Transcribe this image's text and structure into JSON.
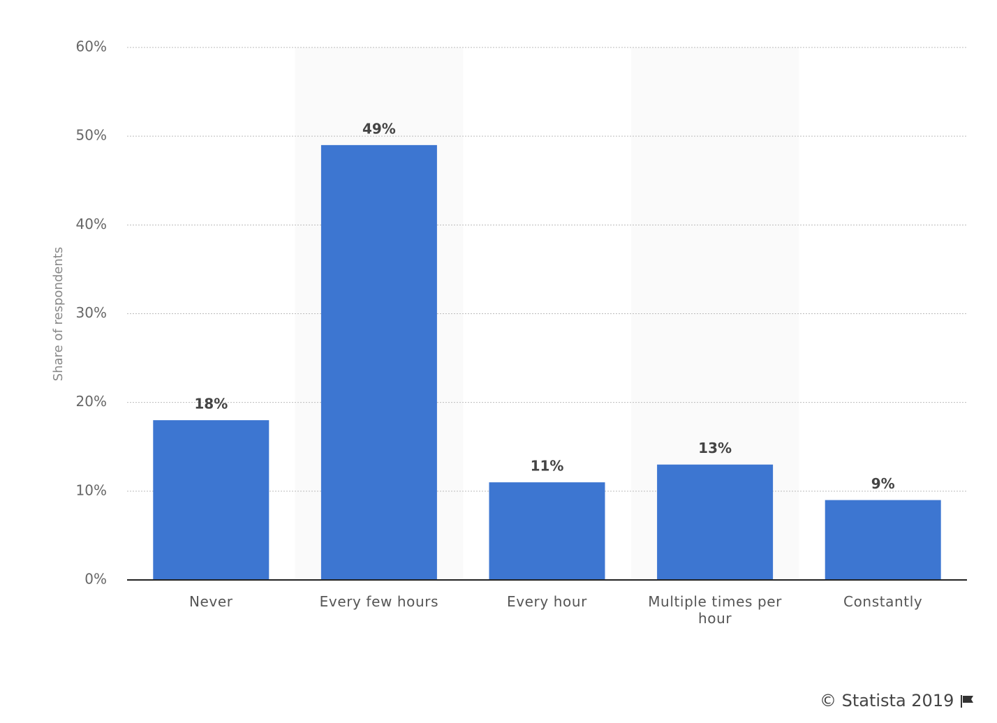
{
  "chart_data": {
    "type": "bar",
    "y_axis_label": "Share of respondents",
    "categories": [
      "Never",
      "Every few hours",
      "Every hour",
      "Multiple times per hour",
      "Constantly"
    ],
    "values": [
      18,
      49,
      11,
      13,
      9
    ],
    "value_labels": [
      "18%",
      "49%",
      "11%",
      "13%",
      "9%"
    ],
    "color": "#3d76d1",
    "ylim": [
      0,
      60
    ],
    "yticks": [
      {
        "value": 0,
        "label": "0%"
      },
      {
        "value": 10,
        "label": "10%"
      },
      {
        "value": 20,
        "label": "20%"
      },
      {
        "value": 30,
        "label": "30%"
      },
      {
        "value": 40,
        "label": "40%"
      },
      {
        "value": 50,
        "label": "50%"
      },
      {
        "value": 60,
        "label": "60%"
      }
    ],
    "grid": true,
    "source": "© Statista 2019"
  }
}
